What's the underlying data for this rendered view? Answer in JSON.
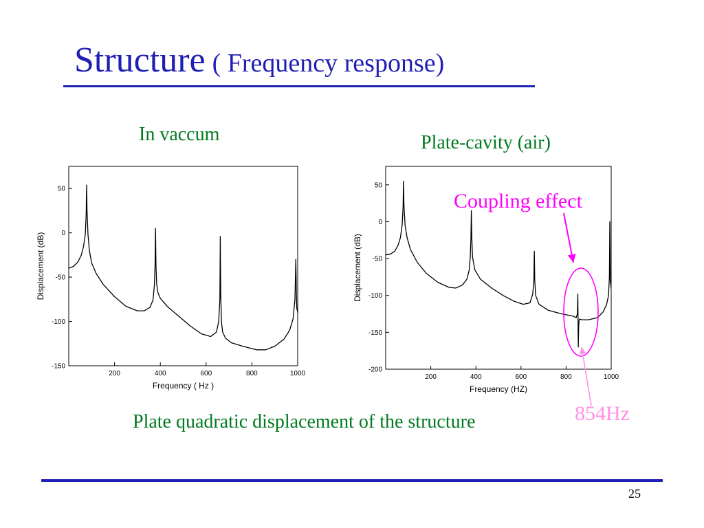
{
  "slide": {
    "title_main": "Structure",
    "title_sub": "( Frequency response)",
    "caption_left": "In vaccum",
    "caption_right": "Plate-cavity (air)",
    "caption_bottom": "Plate quadratic displacement of the structure",
    "annotation_coupling": "Coupling effect",
    "annotation_frequency": "854Hz",
    "page_number": "25",
    "colors": {
      "title": "#1f1fb4",
      "caption": "#007a1f",
      "annotation_coupling": "#ff00ff",
      "annotation_frequency": "#ff8fe8",
      "rule": "#1f1fb4"
    }
  },
  "chart_data": [
    {
      "type": "line",
      "title": "",
      "xlabel": "Frequency ( Hz )",
      "ylabel": "Displacement (dB)",
      "xlim": [
        0,
        1000
      ],
      "ylim": [
        -150,
        75
      ],
      "xticks": [
        200,
        400,
        600,
        800,
        1000
      ],
      "yticks": [
        50,
        0,
        -50,
        -100,
        -150
      ],
      "grid": false,
      "series": [
        {
          "x": [
            0,
            20,
            40,
            55,
            65,
            72,
            76,
            78,
            80,
            84,
            90,
            100,
            120,
            150,
            200,
            250,
            300,
            330,
            355,
            368,
            374,
            377,
            379,
            381,
            384,
            390,
            400,
            430,
            480,
            530,
            580,
            620,
            645,
            655,
            660,
            662,
            664,
            667,
            672,
            685,
            710,
            760,
            820,
            860,
            900,
            940,
            965,
            980,
            988,
            992,
            994,
            996,
            1000
          ],
          "y": [
            -40,
            -38,
            -33,
            -25,
            -15,
            -2,
            20,
            54,
            25,
            -2,
            -20,
            -34,
            -46,
            -58,
            -72,
            -83,
            -88,
            -88,
            -84,
            -76,
            -60,
            -38,
            5,
            -38,
            -58,
            -68,
            -74,
            -83,
            -94,
            -105,
            -114,
            -117,
            -112,
            -100,
            -75,
            -4,
            -70,
            -100,
            -112,
            -119,
            -124,
            -128,
            -132,
            -132,
            -128,
            -120,
            -110,
            -97,
            -75,
            -30,
            -65,
            -85,
            -90
          ]
        }
      ]
    },
    {
      "type": "line",
      "title": "",
      "xlabel": "Frequency (HZ)",
      "ylabel": "Displacement (dB)",
      "xlim": [
        0,
        1000
      ],
      "ylim": [
        -200,
        75
      ],
      "xticks": [
        200,
        400,
        600,
        800,
        1000
      ],
      "yticks": [
        50,
        0,
        -50,
        -100,
        -150,
        -200
      ],
      "grid": false,
      "series": [
        {
          "x": [
            0,
            20,
            40,
            55,
            65,
            73,
            77,
            79,
            81,
            86,
            95,
            110,
            140,
            180,
            230,
            280,
            310,
            340,
            360,
            370,
            375,
            378,
            380,
            382,
            385,
            395,
            420,
            470,
            520,
            570,
            610,
            640,
            652,
            657,
            659,
            661,
            665,
            680,
            720,
            780,
            830,
            845,
            850,
            852,
            854,
            856,
            858,
            860,
            870,
            900,
            940,
            965,
            980,
            988,
            992,
            994,
            996,
            1000
          ],
          "y": [
            -45,
            -44,
            -40,
            -32,
            -22,
            -5,
            20,
            55,
            22,
            -5,
            -22,
            -38,
            -55,
            -70,
            -82,
            -89,
            -90,
            -86,
            -78,
            -66,
            -48,
            -22,
            15,
            -22,
            -48,
            -65,
            -78,
            -90,
            -100,
            -108,
            -112,
            -110,
            -98,
            -80,
            -40,
            -78,
            -100,
            -112,
            -120,
            -125,
            -128,
            -130,
            -125,
            -98,
            -170,
            -140,
            -133,
            -132,
            -133,
            -133,
            -130,
            -122,
            -112,
            -100,
            -75,
            0,
            -80,
            -90
          ]
        }
      ]
    }
  ]
}
